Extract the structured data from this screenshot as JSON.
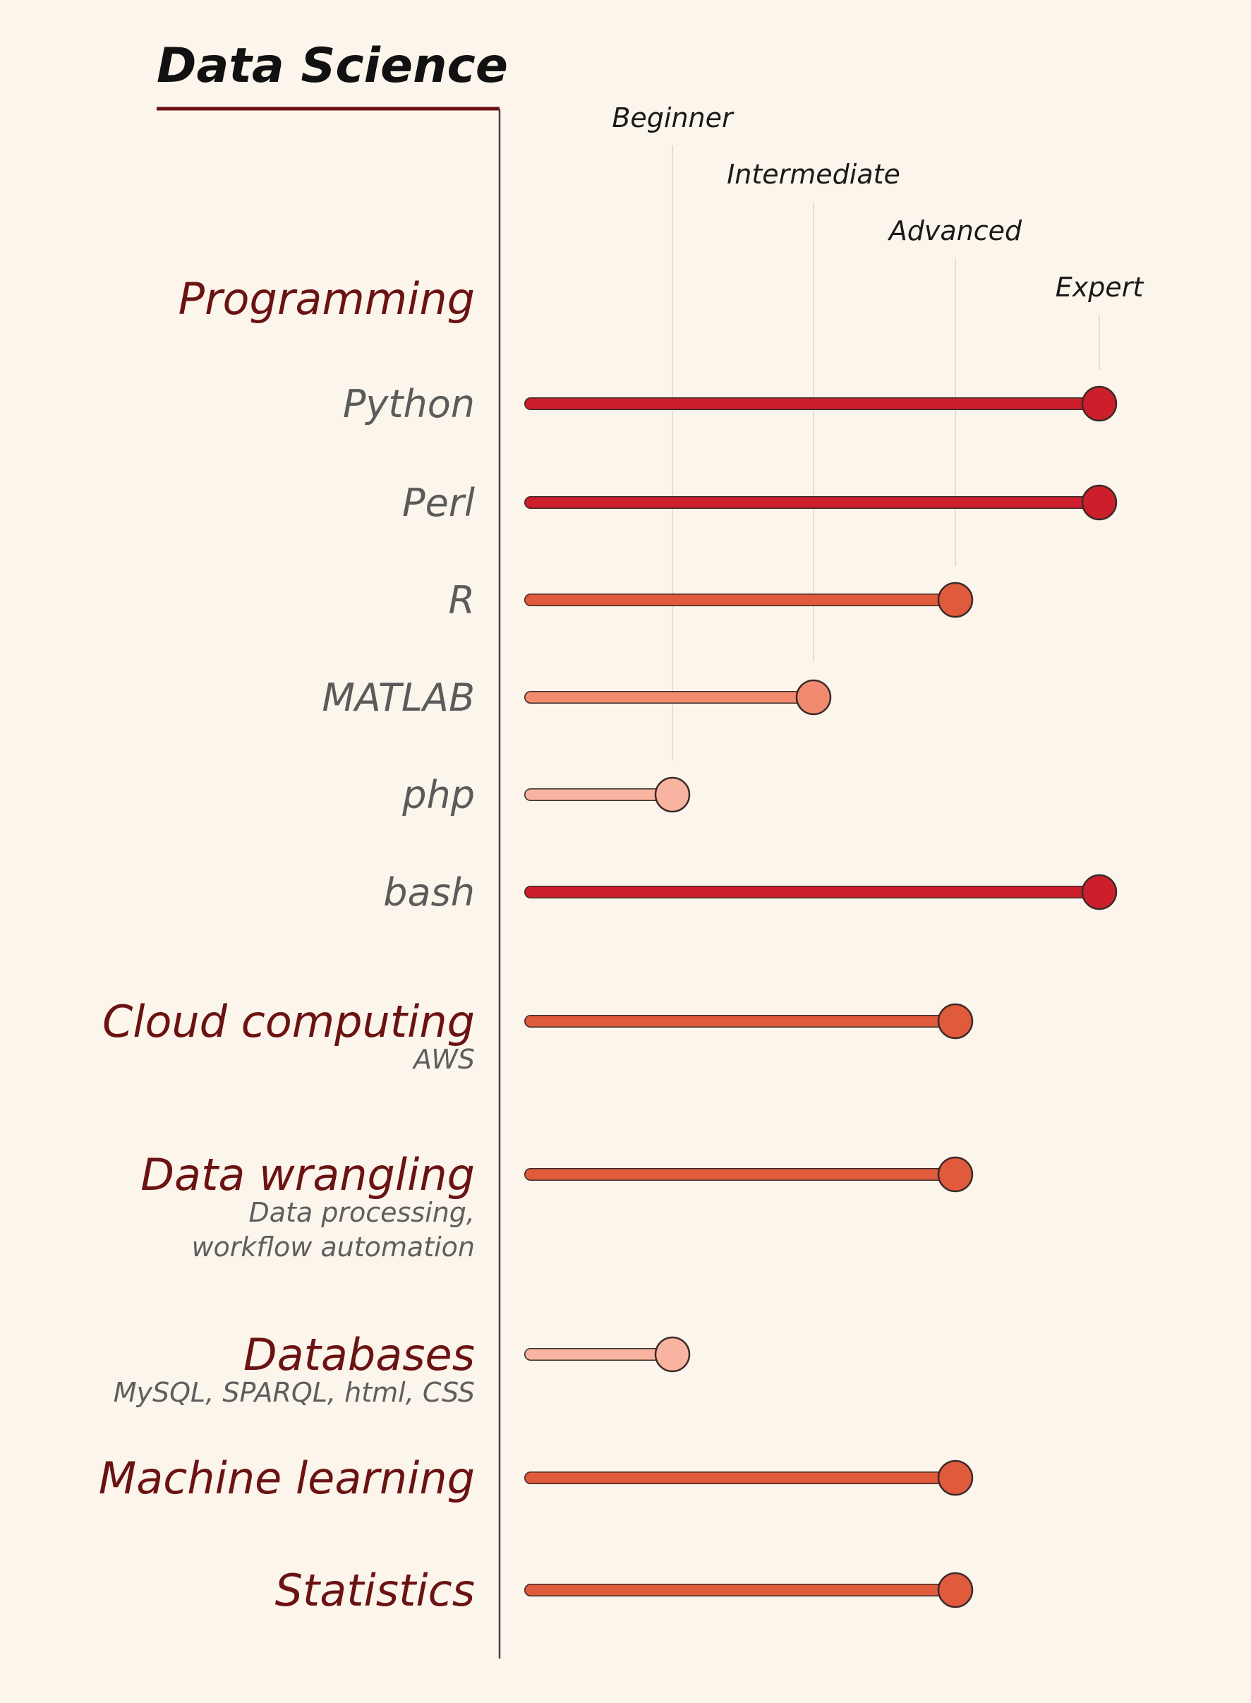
{
  "chart_data": {
    "type": "lollipop",
    "title": "Data Science",
    "levels": [
      "Beginner",
      "Intermediate",
      "Advanced",
      "Expert"
    ],
    "colors": {
      "background": "#fcf5ec",
      "title_rule": "#6b1212",
      "axis": "#444444",
      "guide": "#e4ddd2",
      "category_text": "#6b1212",
      "skill_text": "#5b5b5b",
      "level_1": "#f8b4a0",
      "level_2": "#f28a6f",
      "level_3": "#e05a3c",
      "level_4": "#cc1f2b"
    },
    "rows": [
      {
        "kind": "header",
        "label": "Programming"
      },
      {
        "kind": "skill",
        "label": "Python",
        "level": 4
      },
      {
        "kind": "skill",
        "label": "Perl",
        "level": 4
      },
      {
        "kind": "skill",
        "label": "R",
        "level": 3
      },
      {
        "kind": "skill",
        "label": "MATLAB",
        "level": 2
      },
      {
        "kind": "skill",
        "label": "php",
        "level": 1
      },
      {
        "kind": "skill",
        "label": "bash",
        "level": 4
      },
      {
        "kind": "category",
        "label": "Cloud computing",
        "sub": [
          "AWS"
        ],
        "level": 3
      },
      {
        "kind": "category",
        "label": "Data wrangling",
        "sub": [
          "Data processing,",
          "workflow automation"
        ],
        "level": 3
      },
      {
        "kind": "category",
        "label": "Databases",
        "sub": [
          "MySQL, SPARQL, html, CSS"
        ],
        "level": 1
      },
      {
        "kind": "category",
        "label": "Machine learning",
        "sub": [],
        "level": 3
      },
      {
        "kind": "category",
        "label": "Statistics",
        "sub": [],
        "level": 3
      }
    ]
  }
}
